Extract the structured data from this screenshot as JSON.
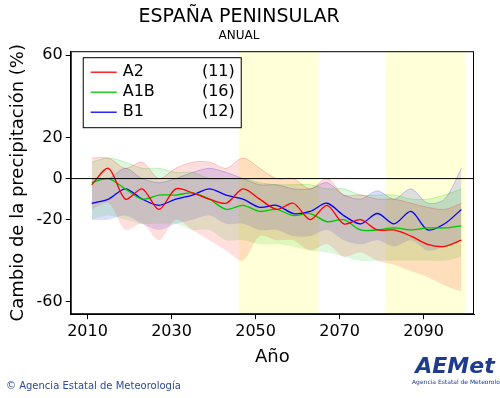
{
  "chart_data": {
    "type": "line",
    "title": "ESPAÑA PENINSULAR",
    "subtitle": "ANUAL",
    "x_label": "Año",
    "y_label": "Cambio de la precipitación (%)",
    "x": [
      2011,
      2015,
      2019,
      2023,
      2027,
      2031,
      2035,
      2039,
      2043,
      2047,
      2051,
      2055,
      2059,
      2063,
      2067,
      2071,
      2075,
      2079,
      2083,
      2087,
      2091,
      2095,
      2099
    ],
    "series": [
      {
        "name": "A2",
        "models": {
          "value": 11,
          "label": "(11)"
        },
        "color": "#ff0000",
        "values": [
          -3,
          5,
          -10,
          -5,
          -15,
          -5,
          -7,
          -10,
          -12,
          -5,
          -10,
          -15,
          -12,
          -20,
          -13,
          -22,
          -20,
          -25,
          -25,
          -28,
          -32,
          -33,
          -30
        ],
        "lower": [
          -15,
          -12,
          -25,
          -22,
          -30,
          -20,
          -25,
          -30,
          -35,
          -40,
          -28,
          -30,
          -30,
          -35,
          -32,
          -38,
          -36,
          -40,
          -42,
          -45,
          -48,
          -52,
          -55
        ],
        "upper": [
          10,
          10,
          5,
          8,
          0,
          5,
          8,
          8,
          5,
          10,
          5,
          0,
          0,
          -5,
          0,
          -8,
          -8,
          -10,
          -10,
          -12,
          -14,
          -15,
          -12
        ]
      },
      {
        "name": "A1B",
        "models": {
          "value": 16,
          "label": "(16)"
        },
        "color": "#00c800",
        "values": [
          -2,
          0,
          -5,
          -10,
          -8,
          -8,
          -7,
          -10,
          -15,
          -13,
          -16,
          -15,
          -18,
          -17,
          -21,
          -20,
          -25,
          -25,
          -24,
          -25,
          -24,
          -24,
          -23
        ],
        "lower": [
          -20,
          -18,
          -20,
          -22,
          -22,
          -22,
          -25,
          -25,
          -30,
          -30,
          -32,
          -32,
          -33,
          -35,
          -36,
          -38,
          -40,
          -40,
          -40,
          -40,
          -40,
          -40,
          -38
        ],
        "upper": [
          8,
          10,
          8,
          5,
          5,
          3,
          3,
          0,
          0,
          0,
          -2,
          -3,
          -3,
          -3,
          -5,
          -5,
          -8,
          -8,
          -8,
          -10,
          -10,
          -8,
          -5
        ]
      },
      {
        "name": "B1",
        "models": {
          "value": 12,
          "label": "(12)"
        },
        "color": "#0000ff",
        "values": [
          -12,
          -10,
          -5,
          -10,
          -13,
          -10,
          -8,
          -5,
          -8,
          -10,
          -14,
          -13,
          -17,
          -16,
          -12,
          -18,
          -22,
          -17,
          -22,
          -16,
          -25,
          -22,
          -15
        ],
        "lower": [
          -20,
          -20,
          -18,
          -22,
          -25,
          -22,
          -20,
          -18,
          -22,
          -22,
          -25,
          -25,
          -28,
          -28,
          -25,
          -30,
          -32,
          -30,
          -33,
          -30,
          -35,
          -33,
          -30
        ],
        "upper": [
          0,
          0,
          5,
          0,
          -2,
          0,
          3,
          5,
          3,
          0,
          -3,
          -3,
          -5,
          -5,
          -2,
          -8,
          -10,
          -6,
          -10,
          -5,
          -12,
          -10,
          5
        ]
      }
    ],
    "xlim": [
      2006,
      2102
    ],
    "xticks": [
      2010,
      2030,
      2050,
      2070,
      2090
    ],
    "ylim": [
      -66,
      62
    ],
    "yticks": [
      -60,
      -20,
      0,
      20,
      60
    ],
    "shaded_periods": [
      [
        2046,
        2065
      ],
      [
        2081,
        2100
      ]
    ],
    "hline": 0,
    "grid": false,
    "legend": "upper left",
    "source": "© Agencia Estatal de Meteorología",
    "logo": "AEMet",
    "logo_caption": "Agencia Estatal de Meteorología"
  }
}
